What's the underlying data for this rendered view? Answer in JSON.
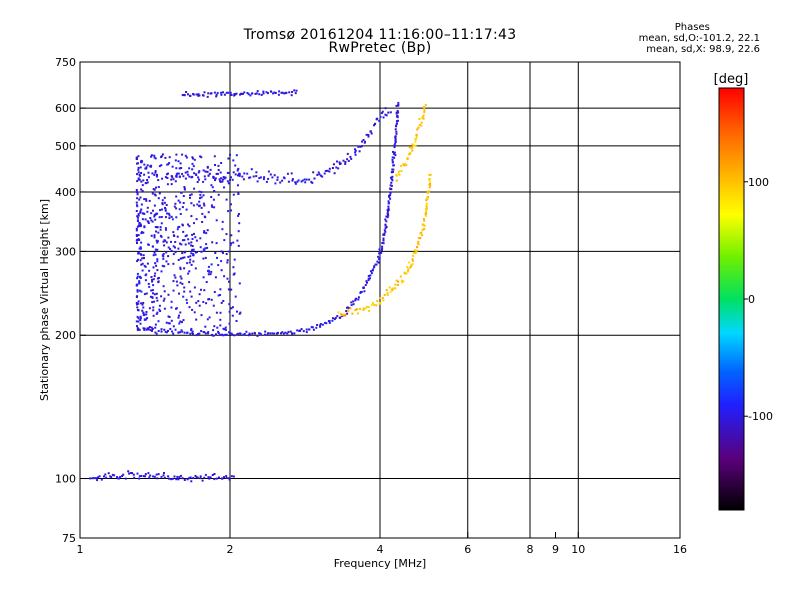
{
  "header": {
    "title_line1": "Tromsø 20161204 11:16:00–11:17:43",
    "title_line2": "RwPretec (Bp)",
    "stats_title": "Phases",
    "stats_o": "mean, sd,O:-101.2, 22.1",
    "stats_x": "mean, sd,X:  98.9, 22.6"
  },
  "chart_data": {
    "type": "scatter",
    "xlabel": "Frequency [MHz]",
    "ylabel": "Stationary phase Virtual Height [km]",
    "x_scale": "log",
    "y_scale": "log",
    "xlim": [
      1,
      16
    ],
    "ylim": [
      75,
      750
    ],
    "x_ticks": [
      1,
      2,
      4,
      6,
      8,
      9,
      10,
      16
    ],
    "x_tick_labels": [
      "1",
      "2",
      "4",
      "6",
      "8",
      "9",
      "10",
      "16"
    ],
    "x_grid": [
      2,
      4,
      6,
      8,
      10
    ],
    "y_ticks": [
      75,
      100,
      200,
      300,
      400,
      500,
      600,
      750
    ],
    "y_tick_labels": [
      "75",
      "100",
      "200",
      "300",
      "400",
      "500",
      "600",
      "750"
    ],
    "y_grid": [
      100,
      200,
      300,
      400,
      500,
      600
    ],
    "grid": true,
    "colorbar": {
      "label": "[deg]",
      "range": [
        -180,
        180
      ],
      "ticks": [
        100,
        0,
        -100
      ],
      "tick_labels": [
        "100",
        "0",
        "-100"
      ]
    },
    "series": [
      {
        "name": "O",
        "phase_mean": -101.2,
        "phase_sd": 22.1,
        "traces": [
          {
            "type": "curve",
            "points": [
              [
                1.05,
                100
              ],
              [
                1.3,
                102
              ],
              [
                1.6,
                100
              ],
              [
                1.9,
                101
              ],
              [
                2.05,
                100
              ]
            ],
            "spread": 8
          },
          {
            "type": "curve",
            "points": [
              [
                1.35,
                205
              ],
              [
                1.6,
                203
              ],
              [
                2.0,
                201
              ],
              [
                2.6,
                202
              ],
              [
                3.0,
                208
              ],
              [
                3.4,
                222
              ],
              [
                3.7,
                248
              ],
              [
                3.95,
                285
              ],
              [
                4.1,
                330
              ],
              [
                4.2,
                400
              ],
              [
                4.3,
                520
              ],
              [
                4.35,
                620
              ]
            ],
            "spread": 6
          },
          {
            "type": "region",
            "x": [
              1.3,
              2.1
            ],
            "y": [
              205,
              480
            ]
          },
          {
            "type": "curve",
            "points": [
              [
                1.5,
                430
              ],
              [
                1.8,
                432
              ],
              [
                2.1,
                432
              ],
              [
                2.4,
                428
              ],
              [
                2.8,
                425
              ],
              [
                3.2,
                445
              ],
              [
                3.6,
                490
              ],
              [
                3.95,
                560
              ],
              [
                4.2,
                600
              ]
            ],
            "spread": 14
          },
          {
            "type": "curve",
            "points": [
              [
                1.6,
                640
              ],
              [
                1.9,
                643
              ],
              [
                2.1,
                643
              ],
              [
                2.4,
                645
              ],
              [
                2.75,
                650
              ]
            ],
            "spread": 6
          }
        ]
      },
      {
        "name": "X",
        "phase_mean": 98.9,
        "phase_sd": 22.6,
        "traces": [
          {
            "type": "curve",
            "points": [
              [
                3.3,
                222
              ],
              [
                3.6,
                225
              ],
              [
                3.9,
                232
              ],
              [
                4.2,
                248
              ],
              [
                4.5,
                268
              ],
              [
                4.7,
                295
              ],
              [
                4.9,
                340
              ],
              [
                5.0,
                400
              ],
              [
                5.05,
                440
              ]
            ],
            "spread": 10
          },
          {
            "type": "curve",
            "points": [
              [
                4.3,
                430
              ],
              [
                4.5,
                460
              ],
              [
                4.7,
                510
              ],
              [
                4.85,
                570
              ],
              [
                4.95,
                610
              ]
            ],
            "spread": 10
          }
        ]
      }
    ]
  }
}
